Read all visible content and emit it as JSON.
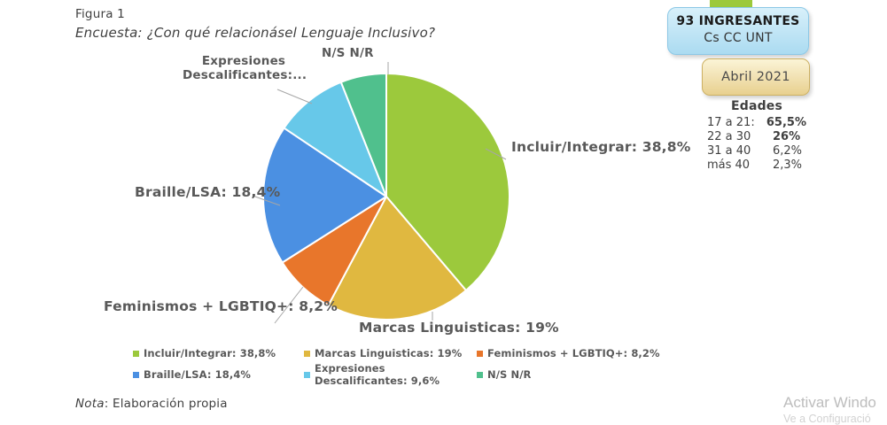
{
  "figure": {
    "label": "Figura 1",
    "title": "Encuesta: ¿Con qué relacionásel Lenguaje Inclusivo?"
  },
  "chart_data": {
    "type": "pie",
    "title": "Encuesta: ¿Con qué relacionás el Lenguaje Inclusivo?",
    "units": "percent",
    "start_angle_deg": 0,
    "direction": "clockwise",
    "slices": [
      {
        "name": "Incluir/Integrar",
        "value": 38.8,
        "color": "#9CC93C"
      },
      {
        "name": "Marcas Linguisticas",
        "value": 19.0,
        "color": "#E0B840"
      },
      {
        "name": "Feminismos + LGBTIQ+",
        "value": 8.2,
        "color": "#E8762B"
      },
      {
        "name": "Braille/LSA",
        "value": 18.4,
        "color": "#4B90E2"
      },
      {
        "name": "Expresiones Descalificantes",
        "value": 9.6,
        "color": "#67C8E9"
      },
      {
        "name": "N/S N/R",
        "value": 6.0,
        "color": "#50C08D"
      }
    ],
    "callout_labels": {
      "incluir": "Incluir/Integrar: 38,8%",
      "marcas": "Marcas Linguisticas: 19%",
      "feminismos": "Feminismos + LGBTIQ+: 8,2%",
      "braille": "Braille/LSA: 18,4%",
      "expresiones_line1": "Expresiones",
      "expresiones_line2": "Descalificantes:...",
      "nsnr": "N/S N/R"
    }
  },
  "legend": {
    "items": [
      {
        "label": "Incluir/Integrar: 38,8%",
        "color": "#9CC93C"
      },
      {
        "label": "Marcas Linguisticas: 19%",
        "color": "#E0B840"
      },
      {
        "label": "Feminismos + LGBTIQ+: 8,2%",
        "color": "#E8762B"
      },
      {
        "label": "Braille/LSA: 18,4%",
        "color": "#4B90E2"
      },
      {
        "label": "Expresiones Descalificantes: 9,6%",
        "color": "#67C8E9"
      },
      {
        "label": "N/S N/R",
        "color": "#50C08D"
      }
    ]
  },
  "info_boxes": {
    "ingresantes_line1": "93 INGRESANTES",
    "ingresantes_line2": "Cs CC UNT",
    "date": "Abril 2021"
  },
  "edades": {
    "title": "Edades",
    "rows": [
      {
        "label": "17 a 21:",
        "value": "65,5%"
      },
      {
        "label": "22 a 30",
        "value": "26%"
      },
      {
        "label": "31 a 40",
        "value": "6,2%"
      },
      {
        "label": "más 40",
        "value": "2,3%"
      }
    ]
  },
  "note": {
    "prefix": "Nota",
    "text": ": Elaboración propia"
  },
  "watermark": {
    "line1": "Activar Windo",
    "line2": "Ve a Configuració"
  }
}
